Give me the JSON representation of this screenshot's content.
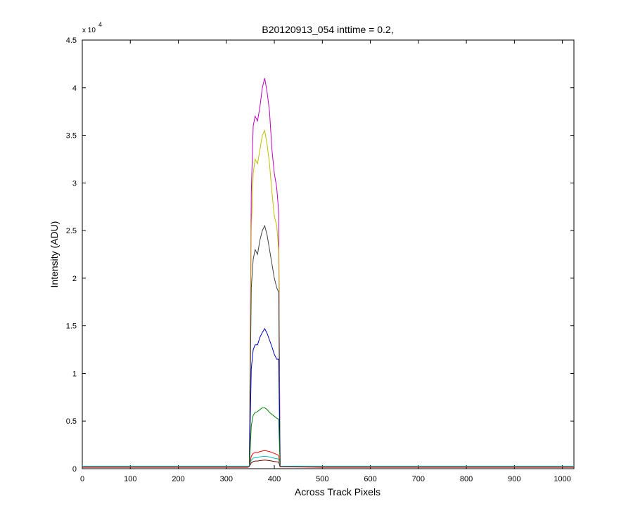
{
  "chart_data": {
    "type": "line",
    "title": "B20120913_054 inttime = 0.2,",
    "x_label": "Across Track Pixels",
    "y_label": "Intensity (ADU)",
    "y_multiplier": "x 10",
    "y_multiplier_exponent": "4",
    "x": [
      0,
      100,
      200,
      300,
      345,
      348,
      352,
      356,
      360,
      365,
      370,
      375,
      380,
      385,
      390,
      395,
      400,
      405,
      409,
      412,
      500,
      600,
      700,
      800,
      900,
      1024
    ],
    "series": [
      {
        "name": "magenta",
        "color": "#bf00bf",
        "values": [
          200,
          200,
          200,
          200,
          200,
          300,
          29000,
          36000,
          37000,
          36500,
          38000,
          40000,
          41000,
          39500,
          37500,
          33500,
          31000,
          29500,
          27000,
          250,
          200,
          200,
          200,
          200,
          200,
          200
        ]
      },
      {
        "name": "yellow",
        "color": "#bfbf00",
        "values": [
          200,
          200,
          200,
          200,
          200,
          300,
          25000,
          31000,
          32500,
          32000,
          33500,
          35000,
          35500,
          34000,
          32000,
          29000,
          26500,
          25500,
          23000,
          250,
          200,
          200,
          200,
          200,
          200,
          200
        ]
      },
      {
        "name": "black",
        "color": "#404040",
        "values": [
          200,
          200,
          200,
          200,
          200,
          300,
          19000,
          22000,
          23000,
          22500,
          24000,
          25000,
          25500,
          24500,
          23000,
          21500,
          20000,
          19000,
          18500,
          250,
          200,
          200,
          200,
          200,
          200,
          200
        ]
      },
      {
        "name": "blue",
        "color": "#0000bf",
        "values": [
          200,
          200,
          200,
          200,
          200,
          300,
          10500,
          12500,
          13000,
          13000,
          13800,
          14300,
          14700,
          14200,
          13500,
          12800,
          12000,
          11500,
          11500,
          250,
          200,
          200,
          200,
          200,
          200,
          200
        ]
      },
      {
        "name": "green",
        "color": "#008000",
        "values": [
          200,
          200,
          200,
          200,
          200,
          300,
          4500,
          5600,
          5900,
          6000,
          6200,
          6400,
          6400,
          6200,
          5900,
          5700,
          5500,
          5300,
          5200,
          250,
          200,
          200,
          200,
          200,
          200,
          200
        ]
      },
      {
        "name": "red",
        "color": "#ff0000",
        "values": [
          200,
          200,
          200,
          200,
          200,
          300,
          1300,
          1600,
          1700,
          1700,
          1800,
          1850,
          1900,
          1850,
          1800,
          1700,
          1600,
          1500,
          1400,
          250,
          200,
          200,
          200,
          200,
          200,
          200
        ]
      },
      {
        "name": "cyan",
        "color": "#00bfbf",
        "values": [
          250,
          250,
          250,
          250,
          250,
          300,
          900,
          1100,
          1150,
          1150,
          1250,
          1280,
          1300,
          1270,
          1230,
          1150,
          1100,
          1050,
          1000,
          250,
          250,
          250,
          250,
          250,
          250,
          250
        ]
      },
      {
        "name": "darkred",
        "color": "#800000",
        "values": [
          150,
          150,
          150,
          150,
          150,
          250,
          600,
          750,
          800,
          800,
          850,
          880,
          900,
          880,
          850,
          800,
          760,
          720,
          700,
          200,
          150,
          150,
          150,
          150,
          150,
          150
        ]
      }
    ],
    "xlim": [
      0,
      1024
    ],
    "xticks": [
      0,
      100,
      200,
      300,
      400,
      500,
      600,
      700,
      800,
      900,
      1000
    ],
    "ylim": [
      0,
      45000
    ],
    "yticks": [
      0,
      {
        "value": 5000,
        "label": "0.5"
      },
      {
        "value": 10000,
        "label": "1"
      },
      {
        "value": 15000,
        "label": "1.5"
      },
      {
        "value": 20000,
        "label": "2"
      },
      {
        "value": 25000,
        "label": "2.5"
      },
      {
        "value": 30000,
        "label": "3"
      },
      {
        "value": 35000,
        "label": "3.5"
      },
      {
        "value": 40000,
        "label": "4"
      },
      {
        "value": 45000,
        "label": "4.5"
      }
    ],
    "grid": false
  }
}
